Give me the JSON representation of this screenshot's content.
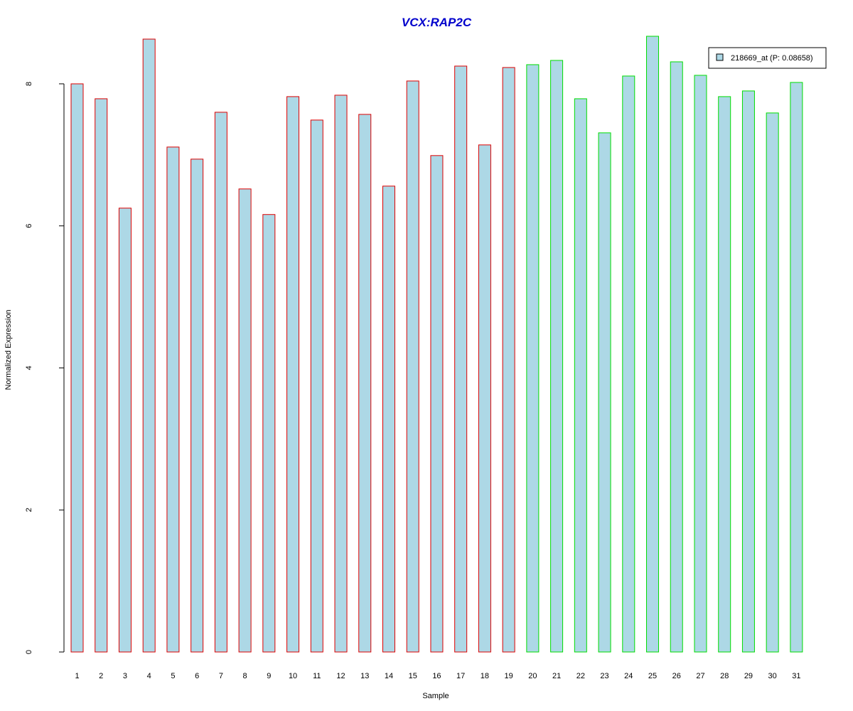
{
  "chart_data": {
    "type": "bar",
    "title": "VCX:RAP2C",
    "title_color": "#0000cc",
    "xlabel": "Sample",
    "ylabel": "Normalized Expression",
    "ylim": [
      0,
      8.7
    ],
    "yticks": [
      0,
      2,
      4,
      6,
      8
    ],
    "grid": false,
    "legend_position": "top-right",
    "categories": [
      "1",
      "2",
      "3",
      "4",
      "5",
      "6",
      "7",
      "8",
      "9",
      "10",
      "11",
      "12",
      "13",
      "14",
      "15",
      "16",
      "17",
      "18",
      "19",
      "20",
      "21",
      "22",
      "23",
      "24",
      "25",
      "26",
      "27",
      "28",
      "29",
      "30",
      "31"
    ],
    "series": [
      {
        "name": "218669_at (P: 0.08658)",
        "fill": "#add8e6",
        "values": [
          8.0,
          7.79,
          6.25,
          8.63,
          7.11,
          6.94,
          7.6,
          6.52,
          6.16,
          7.82,
          7.49,
          7.84,
          7.57,
          6.56,
          8.04,
          6.99,
          8.25,
          7.14,
          8.23,
          8.27,
          8.33,
          7.79,
          7.31,
          8.11,
          8.67,
          8.31,
          8.12,
          7.82,
          7.9,
          7.59,
          8.02
        ]
      }
    ],
    "group_border_colors": [
      "#dd0000",
      "#dd0000",
      "#dd0000",
      "#dd0000",
      "#dd0000",
      "#dd0000",
      "#dd0000",
      "#dd0000",
      "#dd0000",
      "#dd0000",
      "#dd0000",
      "#dd0000",
      "#dd0000",
      "#dd0000",
      "#dd0000",
      "#dd0000",
      "#dd0000",
      "#dd0000",
      "#dd0000",
      "#00dd00",
      "#00dd00",
      "#00dd00",
      "#00dd00",
      "#00dd00",
      "#00dd00",
      "#00dd00",
      "#00dd00",
      "#00dd00",
      "#00dd00",
      "#00dd00",
      "#00dd00"
    ]
  }
}
